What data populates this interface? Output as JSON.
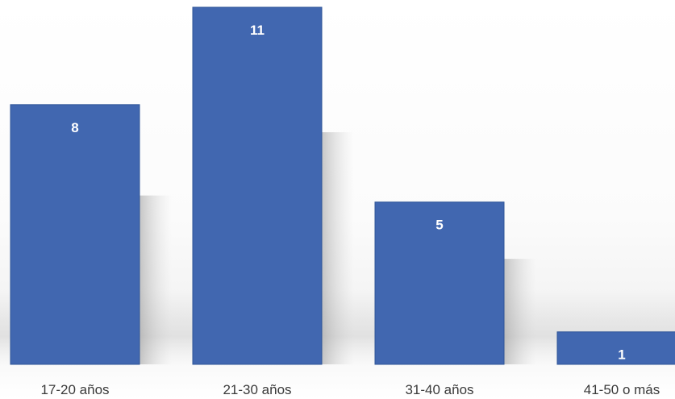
{
  "chart_data": {
    "type": "bar",
    "categories": [
      "17-20 años",
      "21-30 años",
      "31-40 años",
      "41-50 o más"
    ],
    "values": [
      8,
      11,
      5,
      1
    ],
    "title": "",
    "xlabel": "",
    "ylabel": "",
    "ylim": [
      0,
      11
    ],
    "grid": false,
    "legend": "none",
    "data_labels": true,
    "colors": {
      "bar": "#4167b0",
      "bar_edge": "#2f5597",
      "value_label": "#ffffff",
      "tick_label": "#3a3a3a",
      "shadow": "#bfbfbf"
    }
  }
}
